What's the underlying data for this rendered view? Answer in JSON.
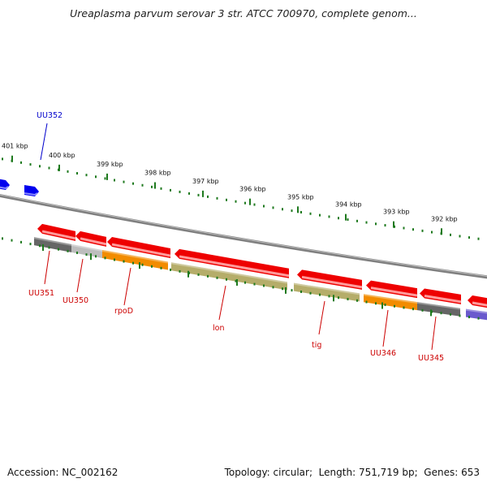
{
  "title": "Ureaplasma parvum serovar 3 str. ATCC 700970, complete genom...",
  "footer": {
    "accession_label": "Accession:",
    "accession": "NC_002162",
    "topology_label": "Topology:",
    "topology": "circular",
    "length_label": "Length:",
    "length": "751,719 bp",
    "genes_label": "Genes:",
    "genes": "653"
  },
  "colors": {
    "backbone": "#8c8c8c",
    "tick": "#1f7a1f",
    "forward_gene": "#0000ee",
    "cds_red": "#ee0000",
    "label_red": "#cc0000",
    "label_blue": "#0000cc",
    "cog_grey": "#666666",
    "cog_lightgrey": "#bdbdbd",
    "cog_orange": "#f28c00",
    "cog_khaki": "#b5ad6a",
    "cog_purple": "#6a5acd"
  },
  "ruler": [
    {
      "label": "401 kbp"
    },
    {
      "label": "400 kbp"
    },
    {
      "label": "399 kbp"
    },
    {
      "label": "398 kbp"
    },
    {
      "label": "397 kbp"
    },
    {
      "label": "396 kbp"
    },
    {
      "label": "395 kbp"
    },
    {
      "label": "394 kbp"
    },
    {
      "label": "393 kbp"
    },
    {
      "label": "392 kbp"
    }
  ],
  "gene_labels": [
    {
      "name": "UU352",
      "color": "#0000cc"
    },
    {
      "name": "UU351",
      "color": "#cc0000"
    },
    {
      "name": "UU350",
      "color": "#cc0000"
    },
    {
      "name": "rpoD",
      "color": "#cc0000"
    },
    {
      "name": "lon",
      "color": "#cc0000"
    },
    {
      "name": "tig",
      "color": "#cc0000"
    },
    {
      "name": "UU346",
      "color": "#cc0000"
    },
    {
      "name": "UU345",
      "color": "#cc0000"
    }
  ],
  "red_arrow_fill": "#ee0000",
  "red_arrow_shade": "#ff9a9a",
  "blue_arrow_shade": "#8888ff",
  "cog_tracks": [
    {
      "color": "#666666"
    },
    {
      "color": "#bdbdbd"
    },
    {
      "color": "#f28c00"
    },
    {
      "color": "#b5ad6a"
    },
    {
      "color": "#b5ad6a"
    },
    {
      "color": "#f28c00"
    },
    {
      "color": "#666666"
    },
    {
      "color": "#6a5acd"
    }
  ]
}
